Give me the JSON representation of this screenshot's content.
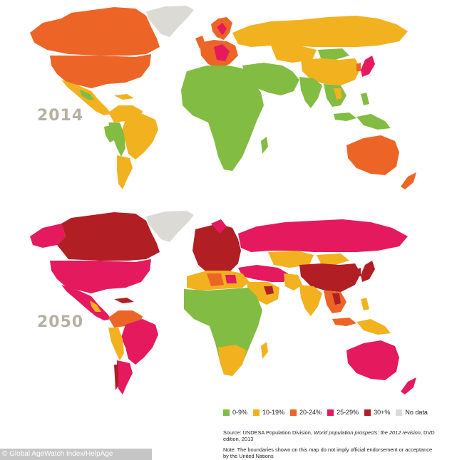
{
  "maps": [
    {
      "year": "2014"
    },
    {
      "year": "2050"
    }
  ],
  "colors": {
    "green": "#82bc42",
    "yellow": "#f2b11e",
    "orange": "#ec6527",
    "pink": "#e5195d",
    "red": "#b11e24",
    "grey": "#dcdad4",
    "year_label": "#b5b0a0"
  },
  "legend": [
    {
      "label": "0-9%",
      "color": "#82bc42"
    },
    {
      "label": "10-19%",
      "color": "#f2b11e"
    },
    {
      "label": "20-24%",
      "color": "#ec6527"
    },
    {
      "label": "25-29%",
      "color": "#e5195d"
    },
    {
      "label": "30+%",
      "color": "#b11e24"
    },
    {
      "label": "No data",
      "color": "#dcdad4"
    }
  ],
  "source": {
    "prefix": "Source: UNDESA Population Division, ",
    "title": "World population prospects: the 2012 revision",
    "suffix": ", DVD edition, 2013"
  },
  "note": "Note: The boundaries shown on this map do not imply official endorsement or acceptance by the United Nations",
  "credit": "© Global AgeWatch Index/HelpAge"
}
